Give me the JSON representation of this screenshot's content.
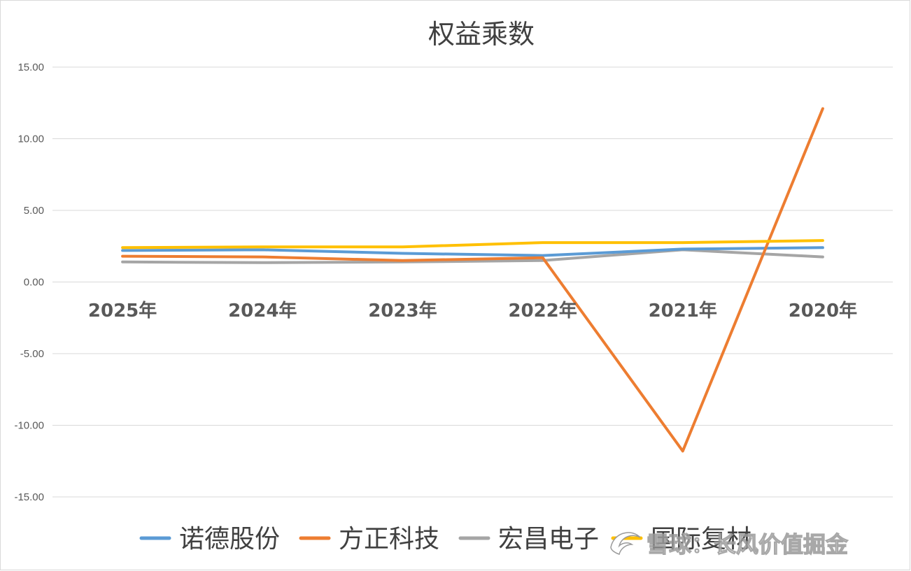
{
  "chart_data": {
    "type": "line",
    "title": "权益乘数",
    "categories": [
      "2025年",
      "2024年",
      "2023年",
      "2022年",
      "2021年",
      "2020年"
    ],
    "ylim": [
      -15,
      15
    ],
    "yticks": [
      "15.00",
      "10.00",
      "5.00",
      "0.00",
      "-5.00",
      "-10.00",
      "-15.00"
    ],
    "ytick_values": [
      15,
      10,
      5,
      0,
      -5,
      -10,
      -15
    ],
    "grid": true,
    "legend_position": "bottom",
    "series": [
      {
        "name": "诺德股份",
        "color": "#5b9bd5",
        "values": [
          2.2,
          2.25,
          2.0,
          1.85,
          2.3,
          2.4
        ]
      },
      {
        "name": "方正科技",
        "color": "#ed7d31",
        "values": [
          1.8,
          1.75,
          1.5,
          1.7,
          -11.8,
          12.1
        ]
      },
      {
        "name": "宏昌电子",
        "color": "#a5a5a5",
        "values": [
          1.4,
          1.35,
          1.4,
          1.5,
          2.25,
          1.75
        ]
      },
      {
        "name": "国际复材",
        "color": "#ffc000",
        "values": [
          2.4,
          2.45,
          2.45,
          2.75,
          2.75,
          2.9
        ]
      }
    ]
  },
  "watermark": "雪球：长风价值掘金"
}
